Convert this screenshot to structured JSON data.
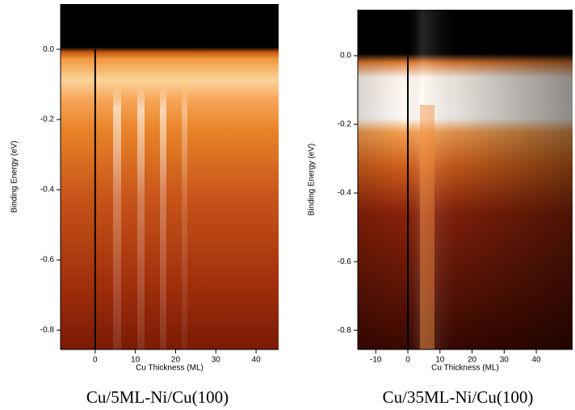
{
  "chart_data": [
    {
      "type": "heatmap",
      "title": "Cu/5ML-Ni/Cu(100)",
      "xlabel": "Cu Thickness (ML)",
      "ylabel": "Binding Energy (eV)",
      "xlim": [
        -8.6,
        45.6
      ],
      "ylim": [
        -0.855,
        0.129
      ],
      "xticks": [
        0,
        10,
        20,
        30,
        40
      ],
      "yticks": [
        {
          "value": 0,
          "label": "0.0"
        },
        -0.2,
        -0.4,
        -0.6,
        -0.8
      ],
      "reference_line_x": 0
    },
    {
      "type": "heatmap",
      "title": "Cu/35ML-Ni/Cu(100)",
      "xlabel": "Cu Thickness (ML)",
      "ylabel": "Binding Energy (eV)",
      "xlim": [
        -15.6,
        51.3
      ],
      "ylim": [
        -0.856,
        0.134
      ],
      "xticks": [
        -10,
        0,
        10,
        20,
        30,
        40
      ],
      "yticks": [
        {
          "value": 0,
          "label": "0.0"
        },
        -0.2,
        -0.4,
        -0.6,
        -0.8
      ],
      "reference_line_x": 0
    }
  ]
}
